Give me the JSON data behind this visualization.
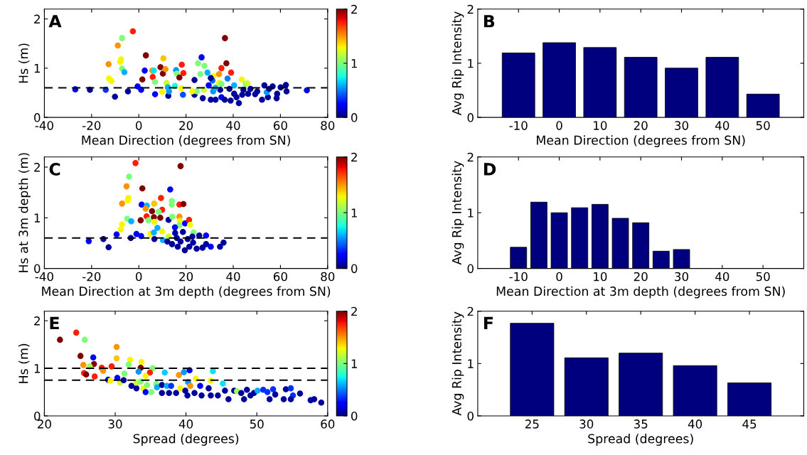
{
  "chart_data": [
    {
      "type": "scatter",
      "xlabel": "Mean Direction (degrees from SN)",
      "ylabel": "Hs (m)",
      "annotations": [
        "A"
      ],
      "marker": "circle",
      "grid": false,
      "xlim": [
        -40,
        80
      ],
      "xticks": [
        -40,
        -20,
        0,
        20,
        40,
        60,
        80
      ],
      "ylim": [
        0,
        2.2
      ],
      "yticks": [
        0,
        1,
        2
      ],
      "clim": [
        0,
        2
      ],
      "cticks": [
        0,
        1,
        2
      ],
      "ref_lines": [
        {
          "axis": "y",
          "value": 0.6,
          "color": "#000000",
          "line_style": "dashed"
        }
      ],
      "x": [
        -26.9,
        -20.7,
        -14,
        -10.1,
        -4.6,
        -0.5,
        1,
        6.9,
        9.9,
        12.5,
        12.8,
        18.7,
        23.6,
        23.6,
        -2.5,
        -7.1,
        -8.9,
        -7.5,
        -7.9,
        -12.8,
        -7.1,
        -6.1,
        -12.6,
        -11.6,
        3,
        2.5,
        1.5,
        5.7,
        6.4,
        9.2,
        10.2,
        11.3,
        10.4,
        5.9,
        6.9,
        11.8,
        15.8,
        16.1,
        18.2,
        18.9,
        17.2,
        15.3,
        18,
        26.6,
        25.1,
        27.8,
        26.1,
        29.1,
        31.7,
        34,
        35,
        36.5,
        37.1,
        39.1,
        37.6,
        31.2,
        30.5,
        34,
        35,
        40.4,
        43.6,
        45.3,
        46.1,
        24.6,
        27.6,
        31.5,
        27.1,
        30.5,
        32.5,
        35,
        36.4,
        38.9,
        42.4,
        41.4,
        43.8,
        46.3,
        49.3,
        52.2,
        54.7,
        53.2,
        56.7,
        58.6,
        58.4,
        60.1,
        62.3,
        62.6,
        71.2,
        54.2,
        47.3,
        50.2,
        38.4,
        29.6,
        34.5,
        32.5,
        40.4,
        44.3,
        22.7,
        12.3,
        55.2
      ],
      "values": [
        0.57,
        0.56,
        0.56,
        0.42,
        0.53,
        0.63,
        0.56,
        0.47,
        0.52,
        0.44,
        0.53,
        0.46,
        0.46,
        0.76,
        1.75,
        1.61,
        1.46,
        1.18,
        1.13,
        1.08,
        0.99,
        0.92,
        0.79,
        0.74,
        1.26,
        0.95,
        0.77,
        0.95,
        0.95,
        1.02,
        0.89,
        0.98,
        1.2,
        0.82,
        0.72,
        0.7,
        0.96,
        0.89,
        1.07,
        0.9,
        0.81,
        0.64,
        0.59,
        1.22,
        1.1,
        1.05,
        0.88,
        0.91,
        0.84,
        0.88,
        1,
        1.61,
        1.1,
        0.91,
        0.79,
        0.75,
        0.8,
        0.7,
        0.68,
        0.65,
        0.77,
        0.68,
        0.69,
        0.53,
        0.56,
        0.53,
        0.39,
        0.36,
        0.36,
        0.41,
        0.36,
        0.34,
        0.29,
        0.41,
        0.46,
        0.48,
        0.47,
        0.36,
        0.41,
        0.65,
        0.63,
        0.48,
        0.39,
        0.61,
        0.66,
        0.53,
        0.55,
        0.51,
        0.58,
        0.53,
        0.58,
        0.65,
        0.56,
        0.6,
        0.48,
        0.56,
        0.53,
        0.61,
        0.58
      ],
      "cvalues": [
        0.25,
        0.05,
        0.35,
        0.05,
        0.05,
        0.2,
        0.25,
        0.25,
        1.3,
        0.05,
        0.55,
        0.4,
        0.05,
        0.05,
        1.75,
        1.0,
        1.5,
        1.3,
        1.3,
        1.5,
        1.0,
        0.6,
        1.3,
        1.3,
        2.0,
        0.25,
        2.0,
        1.5,
        0.7,
        2.0,
        2.0,
        1.5,
        1.4,
        1.75,
        1.0,
        1.2,
        0.55,
        1.0,
        1.75,
        1.75,
        2.0,
        0.75,
        1.3,
        0.25,
        1.0,
        1.0,
        1.0,
        0.6,
        1.3,
        1.5,
        1.75,
        2.0,
        2.0,
        1.75,
        0.5,
        0.45,
        0.05,
        1.3,
        1.0,
        0.6,
        1.3,
        1.0,
        1.2,
        1.0,
        1.2,
        0.55,
        0.05,
        0.05,
        0.05,
        0.25,
        0.05,
        0.05,
        0.05,
        0.05,
        0.05,
        0.05,
        0.05,
        0.05,
        0.05,
        0.05,
        0.05,
        0.05,
        0.05,
        0.05,
        0.05,
        0.05,
        0.25,
        0.55,
        0.05,
        0.05,
        0.05,
        0.25,
        0.05,
        0.6,
        0.05,
        0.05,
        1.3,
        0.6,
        0.05
      ]
    },
    {
      "type": "bar",
      "xlabel": "Mean Direction (degrees from SN)",
      "ylabel": "Avg Rip Intensity",
      "annotations": [
        "B"
      ],
      "grid": false,
      "color": "#00007f",
      "xlim": [
        -20,
        60
      ],
      "xticks": [
        -10,
        0,
        10,
        20,
        30,
        40,
        50
      ],
      "ylim": [
        0,
        2
      ],
      "yticks": [
        0,
        1,
        2
      ],
      "x": [
        -10,
        0,
        10,
        20,
        30,
        40,
        50
      ],
      "values": [
        1.19,
        1.38,
        1.29,
        1.11,
        0.91,
        1.11,
        0.43
      ]
    },
    {
      "type": "scatter",
      "xlabel": "Mean Direction at 3m depth (degrees from SN)",
      "ylabel": "Hs at 3m depth (m)",
      "annotations": [
        "C"
      ],
      "marker": "circle",
      "grid": false,
      "xlim": [
        -40,
        80
      ],
      "xticks": [
        -40,
        -20,
        0,
        20,
        40,
        60,
        80
      ],
      "ylim": [
        0,
        2.2
      ],
      "yticks": [
        0,
        1,
        2
      ],
      "clim": [
        0,
        2
      ],
      "cticks": [
        0,
        1,
        2
      ],
      "ref_lines": [
        {
          "axis": "y",
          "value": 0.6,
          "color": "#000000",
          "line_style": "dashed"
        }
      ],
      "x": [
        -1.4,
        17.7,
        -4.1,
        -5.2,
        1.5,
        13.3,
        -4.4,
        -4.7,
        -7.1,
        9.4,
        14,
        14,
        17.2,
        18.9,
        1.2,
        3.4,
        6.5,
        2.9,
        5.6,
        9.9,
        8.4,
        3.3,
        6.4,
        9.1,
        0.8,
        4.1,
        -4.9,
        -3.2,
        6.6,
        12.6,
        14.2,
        17.2,
        17.4,
        17.2,
        15.3,
        19.6,
        21.3,
        21.7,
        23.2,
        -7.1,
        -7.6,
        -9.4,
        -21.2,
        -15,
        -12.8,
        -3.4,
        -1,
        1,
        4.9,
        6.4,
        7.9,
        9.9,
        6.6,
        10.2,
        12.6,
        15.4,
        16.1,
        12.1,
        14.1,
        16.5,
        19.5,
        21.4,
        23,
        24.5,
        27,
        28.5,
        30.5,
        28.5,
        34.4,
        35.9,
        20.7,
        25.6,
        18.7,
        22.7,
        17.7
      ],
      "values": [
        2.08,
        2.02,
        1.81,
        1.62,
        1.58,
        1.56,
        1.39,
        1.34,
        1.28,
        1.39,
        1.33,
        1.26,
        1.26,
        1.27,
        1.26,
        1.24,
        1.28,
        1.18,
        1.13,
        1.16,
        1.12,
        1.03,
        1.01,
        1,
        0.95,
        0.95,
        0.98,
        0.93,
        0.92,
        0.96,
        1.02,
        1.02,
        0.94,
        0.85,
        0.81,
        0.89,
        0.96,
        0.86,
        0.71,
        0.87,
        0.77,
        0.67,
        0.54,
        0.58,
        0.42,
        0.6,
        0.68,
        0.64,
        0.68,
        0.71,
        0.8,
        0.73,
        0.58,
        0.56,
        0.63,
        0.7,
        0.6,
        0.53,
        0.48,
        0.43,
        0.36,
        0.43,
        0.51,
        0.39,
        0.41,
        0.65,
        0.43,
        0.48,
        0.43,
        0.51,
        0.58,
        0.65,
        0.72,
        0.63,
        0.53
      ],
      "cvalues": [
        1.75,
        2.0,
        1.0,
        1.5,
        2.0,
        0.25,
        1.3,
        1.3,
        1.5,
        1.75,
        1.0,
        1.0,
        1.75,
        2.0,
        0.25,
        0.6,
        1.4,
        1.5,
        2.0,
        1.75,
        1.0,
        1.75,
        2.0,
        2.0,
        2.0,
        1.0,
        1.0,
        0.6,
        1.3,
        0.05,
        1.0,
        1.5,
        1.3,
        1.0,
        0.25,
        0.25,
        1.75,
        1.3,
        1.0,
        1.3,
        1.3,
        0.25,
        0.25,
        0.05,
        0.05,
        0.05,
        0.25,
        0.25,
        1.3,
        0.6,
        0.6,
        1.3,
        0.05,
        0.6,
        1.2,
        0.05,
        0.05,
        0.05,
        0.05,
        0.05,
        0.05,
        0.05,
        0.05,
        0.05,
        0.05,
        0.25,
        0.25,
        0.05,
        0.05,
        0.05,
        0.05,
        0.05,
        0.05,
        0.05,
        0.05
      ]
    },
    {
      "type": "bar",
      "xlabel": "Mean Direction at 3m depth (degrees from SN)",
      "ylabel": "Avg Rip Intensity",
      "annotations": [
        "D"
      ],
      "grid": false,
      "color": "#00007f",
      "xlim": [
        -20,
        60
      ],
      "xticks": [
        -10,
        0,
        10,
        20,
        30,
        40,
        50
      ],
      "ylim": [
        0,
        2
      ],
      "yticks": [
        0,
        1,
        2
      ],
      "x": [
        -10,
        -5,
        0,
        5,
        10,
        15,
        20,
        25,
        30
      ],
      "values": [
        0.38,
        1.19,
        1.0,
        1.09,
        1.15,
        0.9,
        0.82,
        0.31,
        0.34
      ]
    },
    {
      "type": "scatter",
      "xlabel": "Spread (degrees)",
      "ylabel": "Hs (m)",
      "annotations": [
        "E"
      ],
      "marker": "circle",
      "grid": false,
      "xlim": [
        20,
        60
      ],
      "xticks": [
        20,
        30,
        40,
        50,
        60
      ],
      "ylim": [
        0,
        2.2
      ],
      "yticks": [
        0,
        1,
        2
      ],
      "clim": [
        0,
        2
      ],
      "cticks": [
        0,
        1,
        2
      ],
      "ref_lines": [
        {
          "axis": "y",
          "value": 1.0,
          "color": "#000000",
          "line_style": "dashed"
        },
        {
          "axis": "y",
          "value": 0.75,
          "color": "#000000",
          "line_style": "dashed"
        }
      ],
      "x": [
        22.2,
        24.5,
        25.7,
        30.2,
        25.1,
        26.9,
        30.2,
        25.5,
        27,
        26.4,
        25.6,
        25.9,
        27.1,
        28.1,
        28.3,
        29.5,
        32.1,
        31.9,
        33.7,
        33.6,
        35.3,
        34.9,
        33.3,
        34.3,
        31.3,
        29,
        29.3,
        30.3,
        30.7,
        31.2,
        37,
        39,
        39.7,
        40.5,
        43.8,
        41.4,
        43.5,
        45.2,
        40.3,
        32.3,
        33,
        34,
        34.3,
        35.1,
        34.5,
        35.8,
        35.9,
        36.6,
        37.3,
        37.9,
        36.6,
        37.6,
        38.6,
        39.2,
        39.9,
        40.6,
        40.2,
        41.2,
        42.2,
        42,
        43.2,
        43.5,
        44.5,
        45.5,
        46,
        46.8,
        47.2,
        47.8,
        48.2,
        48.6,
        49.1,
        49.6,
        50.1,
        50.9,
        51.5,
        51.8,
        52.3,
        52.6,
        53.8,
        54.1,
        54.8,
        55.1,
        54.8,
        56.1,
        57.6,
        58.1,
        59.1,
        33,
        33.6
      ],
      "values": [
        1.6,
        1.75,
        1.6,
        1.45,
        1.26,
        1.23,
        1.21,
        1.07,
        1.09,
        1.04,
        0.9,
        0.87,
        0.83,
        1.01,
        0.95,
        1.04,
        1.18,
        1.08,
        1.13,
        1.01,
        1,
        0.91,
        0.93,
        0.84,
        0.89,
        0.76,
        0.74,
        0.8,
        0.7,
        0.75,
        0.91,
        0.86,
        0.92,
        0.96,
        0.94,
        0.78,
        0.74,
        0.68,
        0.71,
        0.63,
        0.58,
        0.58,
        0.5,
        0.5,
        0.65,
        0.67,
        0.6,
        0.65,
        0.63,
        0.63,
        0.48,
        0.48,
        0.48,
        0.58,
        0.53,
        0.63,
        0.43,
        0.48,
        0.43,
        0.63,
        0.58,
        0.43,
        0.43,
        0.53,
        0.35,
        0.53,
        0.52,
        0.48,
        0.35,
        0.55,
        0.43,
        0.48,
        0.53,
        0.55,
        0.5,
        0.35,
        0.56,
        0.45,
        0.35,
        0.56,
        0.58,
        0.43,
        0.35,
        0.47,
        0.33,
        0.35,
        0.28,
        0.7,
        0.72
      ],
      "cvalues": [
        2.0,
        1.75,
        1.0,
        1.5,
        2.0,
        0.25,
        1.4,
        1.5,
        2.0,
        1.1,
        1.75,
        2.0,
        1.75,
        1.75,
        1.5,
        1.75,
        1.3,
        1.0,
        1.3,
        2.0,
        1.0,
        1.75,
        0.55,
        1.3,
        1.0,
        0.25,
        1.3,
        0.25,
        1.2,
        0.05,
        0.65,
        1.5,
        0.55,
        0.25,
        0.7,
        1.3,
        1.3,
        0.7,
        0.55,
        0.05,
        0.05,
        1.3,
        0.25,
        1.0,
        1.0,
        1.0,
        0.6,
        0.05,
        0.6,
        0.35,
        0.05,
        0.05,
        0.05,
        1.3,
        0.05,
        1.5,
        0.05,
        0.05,
        0.05,
        0.25,
        0.05,
        0.05,
        0.05,
        0.05,
        0.05,
        0.05,
        1.1,
        0.05,
        0.05,
        0.05,
        0.05,
        0.05,
        0.6,
        0.35,
        0.35,
        0.05,
        0.35,
        0.05,
        0.05,
        0.05,
        0.35,
        0.35,
        0.05,
        0.05,
        0.05,
        0.05,
        0.05,
        1.2,
        1.0
      ]
    },
    {
      "type": "bar",
      "xlabel": "Spread (degrees)",
      "ylabel": "Avg Rip Intensity",
      "annotations": [
        "F"
      ],
      "grid": false,
      "color": "#00007f",
      "xlim": [
        20,
        50
      ],
      "xticks": [
        25,
        30,
        35,
        40,
        45
      ],
      "ylim": [
        0,
        2
      ],
      "yticks": [
        0,
        1,
        2
      ],
      "x": [
        25,
        30,
        35,
        40,
        45
      ],
      "values": [
        1.77,
        1.11,
        1.2,
        0.96,
        0.63
      ]
    }
  ]
}
